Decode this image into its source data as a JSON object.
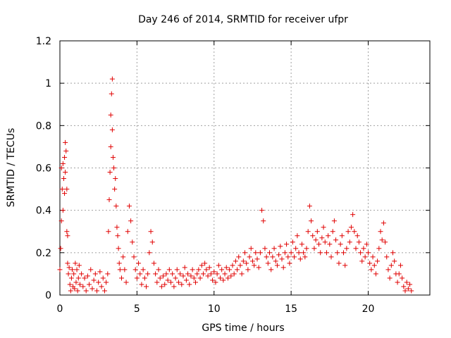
{
  "chart_data": {
    "type": "scatter",
    "title": "Day 246 of 2014, SRMTID for receiver ufpr",
    "xlabel": "GPS time / hours",
    "ylabel": "SRMTID / TECUs",
    "xlim": [
      0,
      24
    ],
    "ylim": [
      0,
      1.2
    ],
    "xticks": [
      0,
      5,
      10,
      15,
      20
    ],
    "xtick_labels": [
      "0",
      "5",
      "10",
      "15",
      "20"
    ],
    "yticks": [
      0,
      0.2,
      0.4,
      0.6,
      0.8,
      1,
      1.2
    ],
    "ytick_labels": [
      "0",
      "0.2",
      "0.4",
      "0.6",
      "0.8",
      "1",
      "1.2"
    ],
    "grid": true,
    "marker": "plus",
    "color": "#e00000",
    "series": [
      {
        "name": "SRMTID",
        "points": [
          [
            0.0,
            0.12
          ],
          [
            0.05,
            0.22
          ],
          [
            0.1,
            0.35
          ],
          [
            0.1,
            0.6
          ],
          [
            0.15,
            0.5
          ],
          [
            0.2,
            0.62
          ],
          [
            0.2,
            0.4
          ],
          [
            0.25,
            0.55
          ],
          [
            0.3,
            0.48
          ],
          [
            0.3,
            0.65
          ],
          [
            0.35,
            0.72
          ],
          [
            0.35,
            0.58
          ],
          [
            0.4,
            0.68
          ],
          [
            0.45,
            0.5
          ],
          [
            0.45,
            0.3
          ],
          [
            0.5,
            0.28
          ],
          [
            0.5,
            0.15
          ],
          [
            0.55,
            0.1
          ],
          [
            0.6,
            0.13
          ],
          [
            0.65,
            0.05
          ],
          [
            0.7,
            0.02
          ],
          [
            0.75,
            0.08
          ],
          [
            0.8,
            0.12
          ],
          [
            0.85,
            0.04
          ],
          [
            0.9,
            0.1
          ],
          [
            0.95,
            0.03
          ],
          [
            1.0,
            0.15
          ],
          [
            1.05,
            0.06
          ],
          [
            1.1,
            0.12
          ],
          [
            1.15,
            0.02
          ],
          [
            1.2,
            0.08
          ],
          [
            1.25,
            0.14
          ],
          [
            1.3,
            0.05
          ],
          [
            1.4,
            0.1
          ],
          [
            1.5,
            0.04
          ],
          [
            1.6,
            0.08
          ],
          [
            1.7,
            0.02
          ],
          [
            1.8,
            0.09
          ],
          [
            1.9,
            0.05
          ],
          [
            2.0,
            0.12
          ],
          [
            2.1,
            0.03
          ],
          [
            2.2,
            0.07
          ],
          [
            2.3,
            0.1
          ],
          [
            2.4,
            0.02
          ],
          [
            2.5,
            0.06
          ],
          [
            2.6,
            0.11
          ],
          [
            2.7,
            0.04
          ],
          [
            2.8,
            0.08
          ],
          [
            2.9,
            0.02
          ],
          [
            3.0,
            0.06
          ],
          [
            3.1,
            0.1
          ],
          [
            3.15,
            0.3
          ],
          [
            3.2,
            0.45
          ],
          [
            3.25,
            0.58
          ],
          [
            3.3,
            0.7
          ],
          [
            3.3,
            0.85
          ],
          [
            3.35,
            0.95
          ],
          [
            3.4,
            1.02
          ],
          [
            3.4,
            0.78
          ],
          [
            3.45,
            0.65
          ],
          [
            3.5,
            0.6
          ],
          [
            3.55,
            0.5
          ],
          [
            3.6,
            0.55
          ],
          [
            3.65,
            0.42
          ],
          [
            3.7,
            0.32
          ],
          [
            3.75,
            0.28
          ],
          [
            3.8,
            0.22
          ],
          [
            3.85,
            0.15
          ],
          [
            3.9,
            0.12
          ],
          [
            4.0,
            0.08
          ],
          [
            4.1,
            0.18
          ],
          [
            4.2,
            0.12
          ],
          [
            4.3,
            0.06
          ],
          [
            4.4,
            0.3
          ],
          [
            4.5,
            0.42
          ],
          [
            4.6,
            0.35
          ],
          [
            4.7,
            0.25
          ],
          [
            4.8,
            0.18
          ],
          [
            4.9,
            0.12
          ],
          [
            5.0,
            0.08
          ],
          [
            5.1,
            0.15
          ],
          [
            5.2,
            0.1
          ],
          [
            5.3,
            0.05
          ],
          [
            5.4,
            0.12
          ],
          [
            5.5,
            0.08
          ],
          [
            5.6,
            0.04
          ],
          [
            5.7,
            0.1
          ],
          [
            5.8,
            0.2
          ],
          [
            5.9,
            0.3
          ],
          [
            6.0,
            0.25
          ],
          [
            6.1,
            0.15
          ],
          [
            6.2,
            0.1
          ],
          [
            6.3,
            0.06
          ],
          [
            6.4,
            0.12
          ],
          [
            6.5,
            0.08
          ],
          [
            6.6,
            0.04
          ],
          [
            6.7,
            0.09
          ],
          [
            6.8,
            0.05
          ],
          [
            6.9,
            0.1
          ],
          [
            7.0,
            0.07
          ],
          [
            7.1,
            0.12
          ],
          [
            7.2,
            0.06
          ],
          [
            7.3,
            0.1
          ],
          [
            7.4,
            0.04
          ],
          [
            7.5,
            0.08
          ],
          [
            7.6,
            0.12
          ],
          [
            7.7,
            0.06
          ],
          [
            7.8,
            0.1
          ],
          [
            7.9,
            0.05
          ],
          [
            8.0,
            0.09
          ],
          [
            8.1,
            0.13
          ],
          [
            8.2,
            0.07
          ],
          [
            8.3,
            0.1
          ],
          [
            8.4,
            0.05
          ],
          [
            8.5,
            0.09
          ],
          [
            8.6,
            0.12
          ],
          [
            8.7,
            0.08
          ],
          [
            8.8,
            0.06
          ],
          [
            8.9,
            0.1
          ],
          [
            9.0,
            0.12
          ],
          [
            9.1,
            0.08
          ],
          [
            9.2,
            0.14
          ],
          [
            9.3,
            0.1
          ],
          [
            9.4,
            0.15
          ],
          [
            9.5,
            0.12
          ],
          [
            9.6,
            0.09
          ],
          [
            9.7,
            0.13
          ],
          [
            9.8,
            0.1
          ],
          [
            9.9,
            0.07
          ],
          [
            10.0,
            0.11
          ],
          [
            10.1,
            0.06
          ],
          [
            10.2,
            0.1
          ],
          [
            10.3,
            0.14
          ],
          [
            10.4,
            0.08
          ],
          [
            10.5,
            0.12
          ],
          [
            10.6,
            0.07
          ],
          [
            10.7,
            0.1
          ],
          [
            10.8,
            0.13
          ],
          [
            10.9,
            0.08
          ],
          [
            11.0,
            0.12
          ],
          [
            11.1,
            0.09
          ],
          [
            11.2,
            0.14
          ],
          [
            11.3,
            0.1
          ],
          [
            11.4,
            0.16
          ],
          [
            11.5,
            0.12
          ],
          [
            11.6,
            0.18
          ],
          [
            11.7,
            0.14
          ],
          [
            11.8,
            0.1
          ],
          [
            11.9,
            0.16
          ],
          [
            12.0,
            0.2
          ],
          [
            12.1,
            0.15
          ],
          [
            12.2,
            0.12
          ],
          [
            12.3,
            0.18
          ],
          [
            12.4,
            0.22
          ],
          [
            12.5,
            0.16
          ],
          [
            12.6,
            0.14
          ],
          [
            12.7,
            0.2
          ],
          [
            12.8,
            0.17
          ],
          [
            12.9,
            0.13
          ],
          [
            13.0,
            0.2
          ],
          [
            13.1,
            0.4
          ],
          [
            13.2,
            0.35
          ],
          [
            13.3,
            0.22
          ],
          [
            13.4,
            0.18
          ],
          [
            13.5,
            0.15
          ],
          [
            13.6,
            0.2
          ],
          [
            13.7,
            0.12
          ],
          [
            13.8,
            0.18
          ],
          [
            13.9,
            0.22
          ],
          [
            14.0,
            0.16
          ],
          [
            14.1,
            0.14
          ],
          [
            14.2,
            0.19
          ],
          [
            14.3,
            0.23
          ],
          [
            14.4,
            0.17
          ],
          [
            14.5,
            0.13
          ],
          [
            14.6,
            0.2
          ],
          [
            14.7,
            0.24
          ],
          [
            14.8,
            0.18
          ],
          [
            14.9,
            0.15
          ],
          [
            15.0,
            0.2
          ],
          [
            15.1,
            0.25
          ],
          [
            15.2,
            0.18
          ],
          [
            15.3,
            0.22
          ],
          [
            15.4,
            0.28
          ],
          [
            15.5,
            0.2
          ],
          [
            15.6,
            0.17
          ],
          [
            15.7,
            0.24
          ],
          [
            15.8,
            0.2
          ],
          [
            15.9,
            0.18
          ],
          [
            16.0,
            0.22
          ],
          [
            16.1,
            0.3
          ],
          [
            16.2,
            0.42
          ],
          [
            16.3,
            0.35
          ],
          [
            16.4,
            0.28
          ],
          [
            16.5,
            0.22
          ],
          [
            16.6,
            0.26
          ],
          [
            16.7,
            0.3
          ],
          [
            16.8,
            0.24
          ],
          [
            16.9,
            0.2
          ],
          [
            17.0,
            0.27
          ],
          [
            17.1,
            0.32
          ],
          [
            17.2,
            0.25
          ],
          [
            17.3,
            0.2
          ],
          [
            17.4,
            0.28
          ],
          [
            17.5,
            0.24
          ],
          [
            17.6,
            0.18
          ],
          [
            17.7,
            0.3
          ],
          [
            17.8,
            0.35
          ],
          [
            17.9,
            0.26
          ],
          [
            18.0,
            0.2
          ],
          [
            18.1,
            0.15
          ],
          [
            18.2,
            0.24
          ],
          [
            18.3,
            0.28
          ],
          [
            18.4,
            0.2
          ],
          [
            18.5,
            0.14
          ],
          [
            18.6,
            0.22
          ],
          [
            18.7,
            0.3
          ],
          [
            18.8,
            0.25
          ],
          [
            18.9,
            0.32
          ],
          [
            19.0,
            0.38
          ],
          [
            19.1,
            0.3
          ],
          [
            19.2,
            0.22
          ],
          [
            19.3,
            0.28
          ],
          [
            19.4,
            0.25
          ],
          [
            19.5,
            0.2
          ],
          [
            19.6,
            0.16
          ],
          [
            19.7,
            0.22
          ],
          [
            19.8,
            0.18
          ],
          [
            19.9,
            0.24
          ],
          [
            20.0,
            0.2
          ],
          [
            20.1,
            0.15
          ],
          [
            20.2,
            0.12
          ],
          [
            20.3,
            0.18
          ],
          [
            20.4,
            0.14
          ],
          [
            20.5,
            0.1
          ],
          [
            20.6,
            0.16
          ],
          [
            20.7,
            0.22
          ],
          [
            20.8,
            0.3
          ],
          [
            20.9,
            0.26
          ],
          [
            21.0,
            0.34
          ],
          [
            21.1,
            0.25
          ],
          [
            21.2,
            0.18
          ],
          [
            21.3,
            0.12
          ],
          [
            21.4,
            0.08
          ],
          [
            21.5,
            0.14
          ],
          [
            21.6,
            0.2
          ],
          [
            21.7,
            0.16
          ],
          [
            21.8,
            0.1
          ],
          [
            21.9,
            0.06
          ],
          [
            22.0,
            0.1
          ],
          [
            22.1,
            0.14
          ],
          [
            22.2,
            0.08
          ],
          [
            22.3,
            0.04
          ],
          [
            22.4,
            0.02
          ],
          [
            22.5,
            0.06
          ],
          [
            22.6,
            0.03
          ],
          [
            22.7,
            0.05
          ],
          [
            22.8,
            0.02
          ]
        ]
      }
    ]
  }
}
